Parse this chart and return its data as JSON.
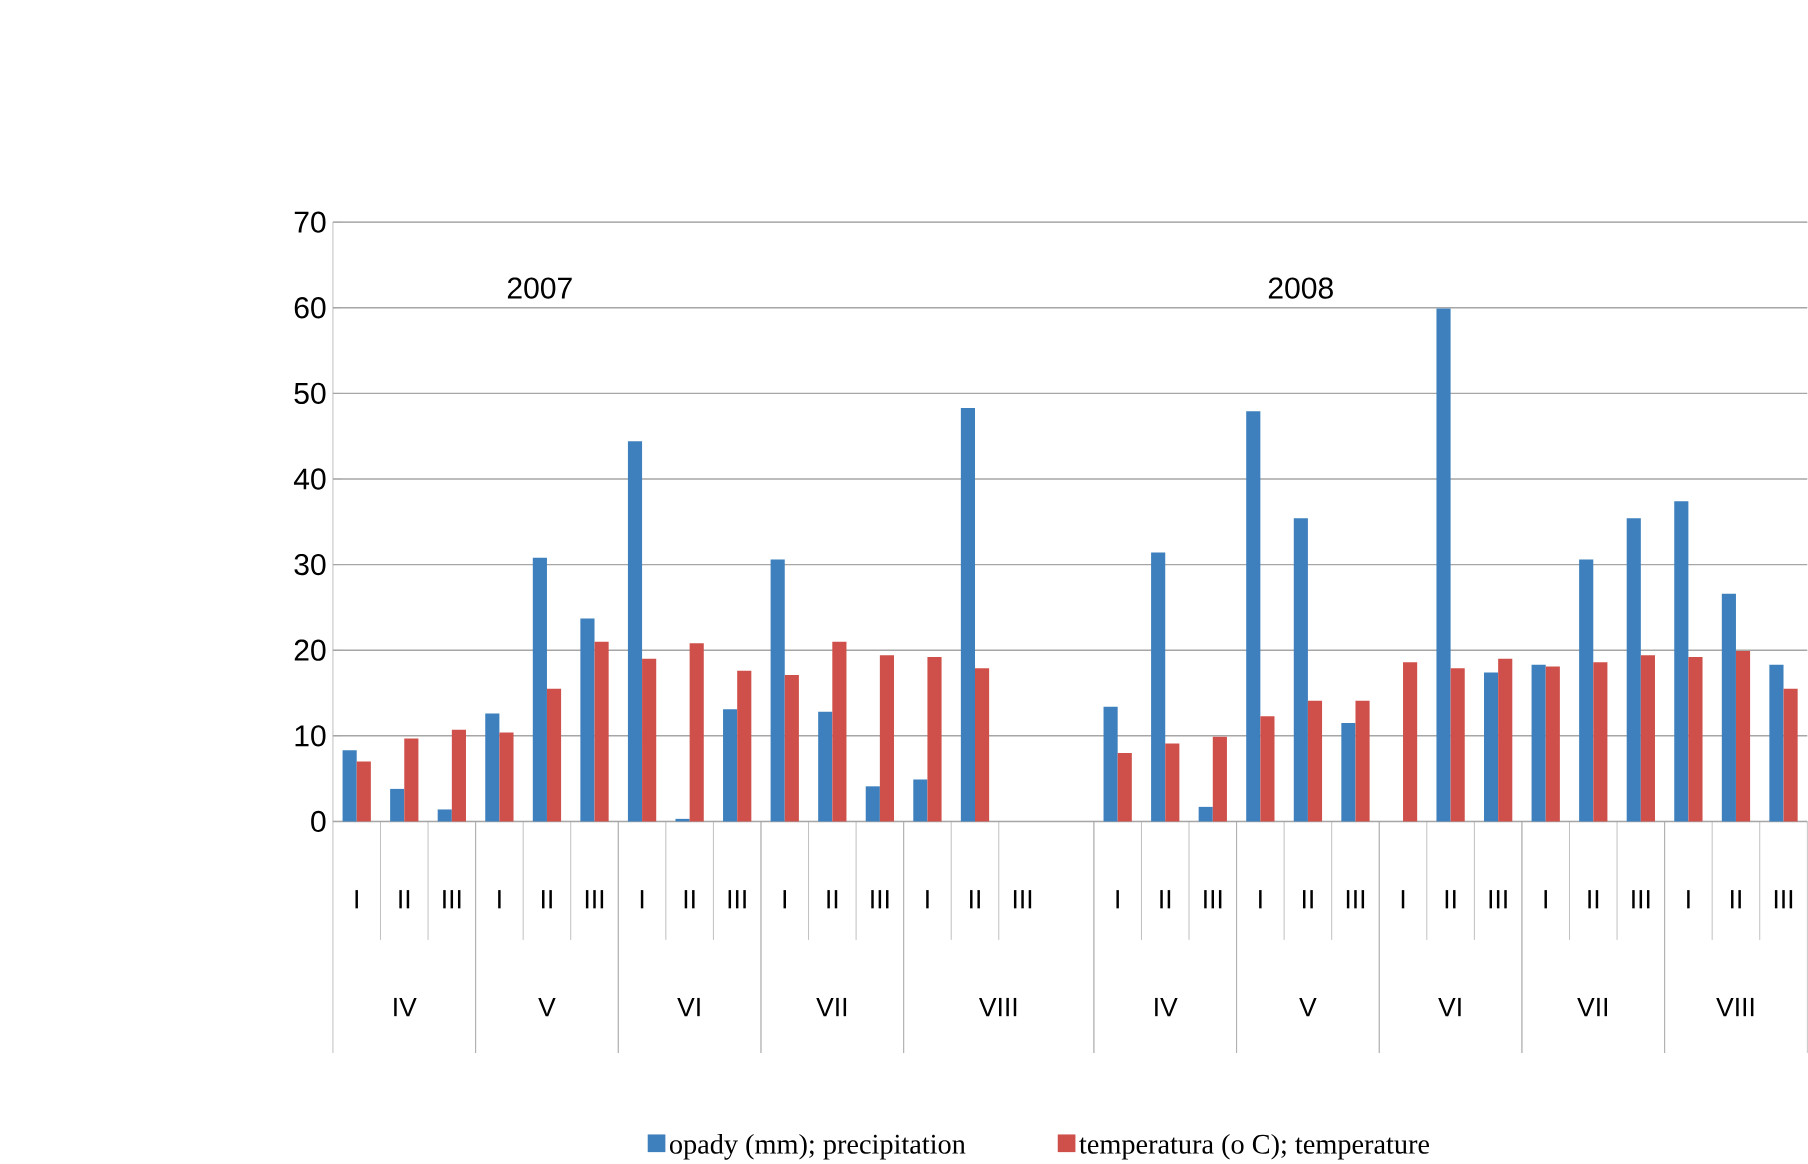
{
  "chart_data": {
    "type": "bar",
    "categories": [
      "I",
      "II",
      "III",
      "I",
      "II",
      "III",
      "I",
      "II",
      "III",
      "I",
      "II",
      "III",
      "I",
      "II",
      "III",
      null,
      "I",
      "II",
      "III",
      "I",
      "II",
      "III",
      "I",
      "II",
      "III",
      "I",
      "II",
      "III",
      "I",
      "II",
      "III"
    ],
    "series": [
      {
        "name": "opady (mm); precipitation",
        "color": "#3d80bd",
        "values": [
          8.3,
          3.8,
          1.4,
          12.6,
          30.8,
          23.7,
          44.4,
          0.3,
          13.1,
          30.6,
          12.8,
          4.1,
          4.9,
          48.3,
          null,
          null,
          13.4,
          31.4,
          1.7,
          47.9,
          35.4,
          11.5,
          null,
          59.9,
          17.4,
          18.3,
          30.6,
          35.4,
          37.4,
          26.6,
          18.3
        ]
      },
      {
        "name": "temperatura (o C); temperature",
        "color": "#cf504a",
        "values": [
          7.0,
          9.7,
          10.7,
          10.4,
          15.5,
          21.0,
          19.0,
          20.8,
          17.6,
          17.1,
          21.0,
          19.4,
          19.2,
          17.9,
          null,
          null,
          8.0,
          9.1,
          9.9,
          12.3,
          14.1,
          14.1,
          18.6,
          17.9,
          19.0,
          18.1,
          18.6,
          19.4,
          19.2,
          19.9,
          15.5
        ]
      }
    ],
    "annotations": [
      "2007",
      "2008",
      "IV",
      "V",
      "VI",
      "VII",
      "VIII",
      "IV",
      "V",
      "VI",
      "VII",
      "VIII"
    ],
    "ylim": [
      0,
      70
    ],
    "yticks": [
      0,
      10,
      20,
      30,
      40,
      50,
      60,
      70
    ],
    "grid": "y",
    "legend": "bottom"
  }
}
